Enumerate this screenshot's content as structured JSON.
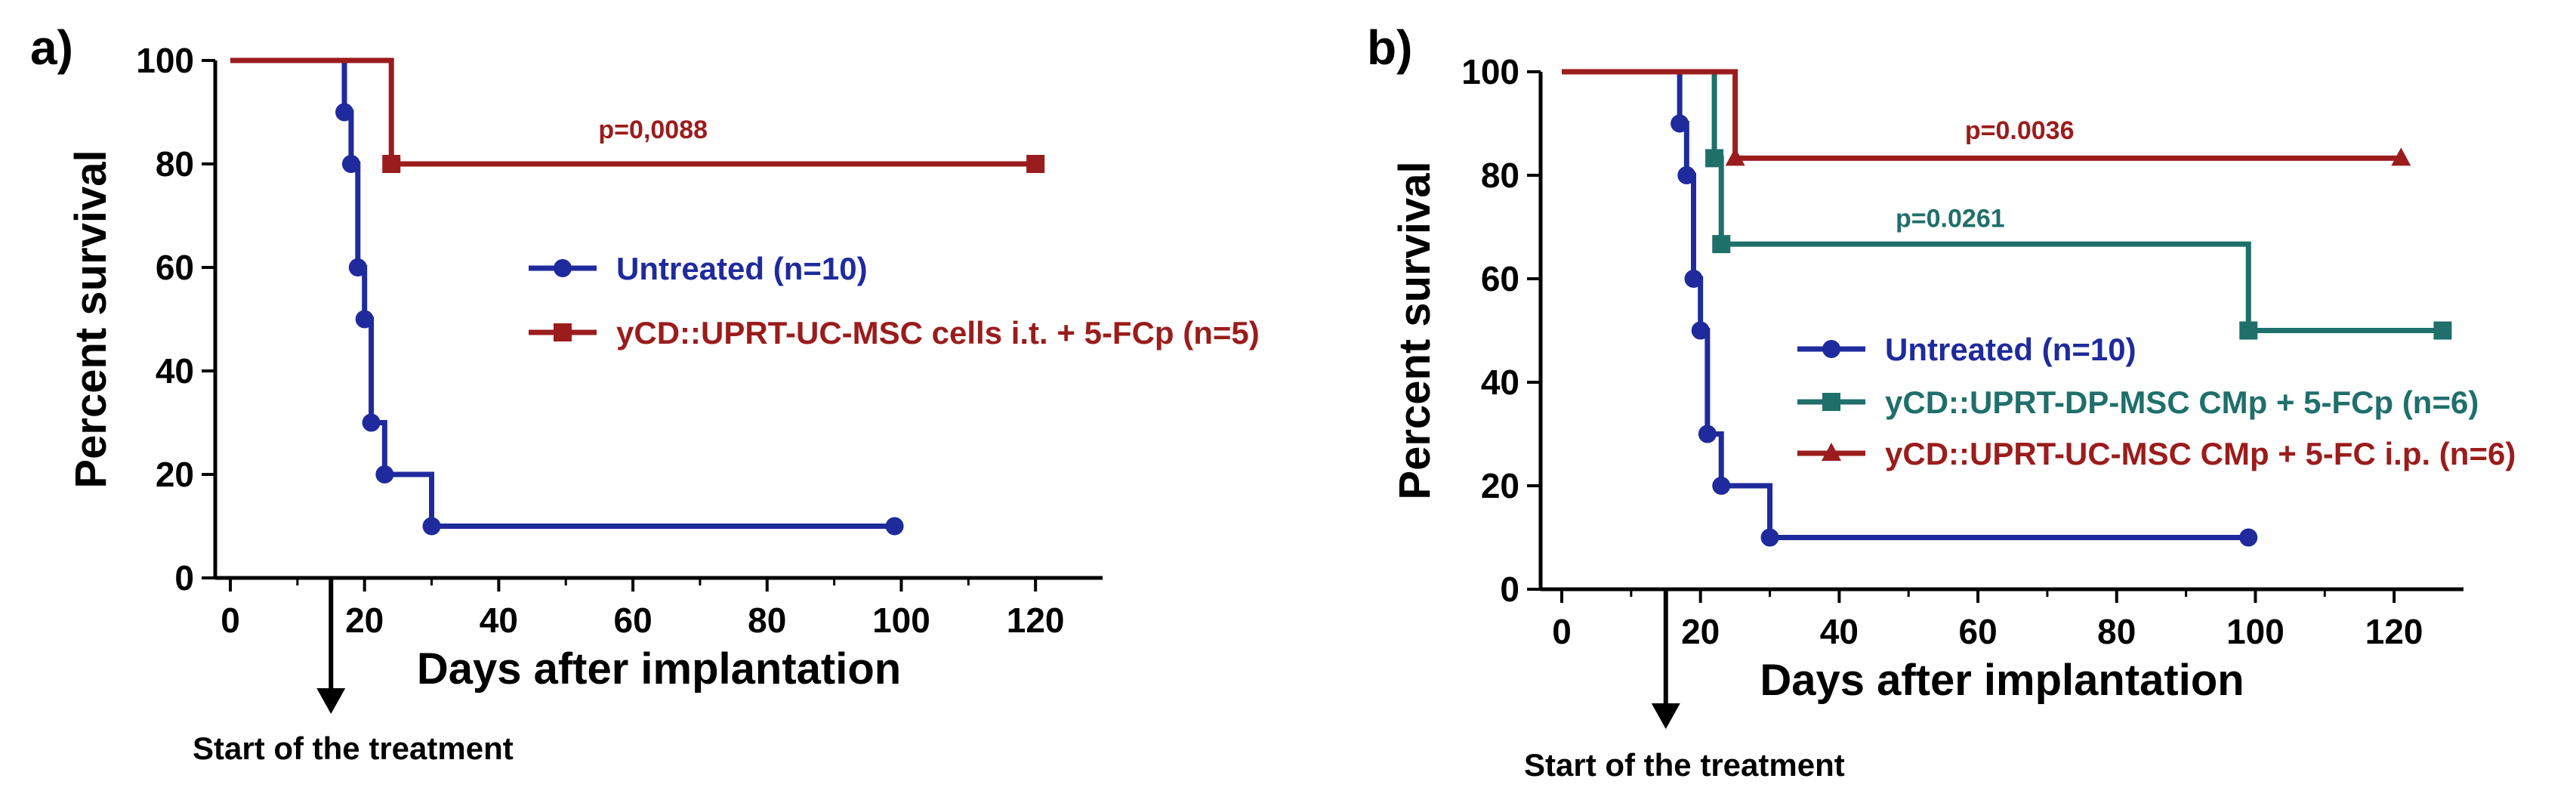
{
  "chart_data": [
    {
      "type": "line",
      "subtype": "kaplan-meier survival",
      "panel_label": "a)",
      "title": "",
      "xlabel": "Days after implantation",
      "ylabel": "Percent survival",
      "xlim": [
        0,
        130
      ],
      "ylim": [
        0,
        100
      ],
      "x_ticks": [
        "0",
        "20",
        "40",
        "60",
        "80",
        "100",
        "120"
      ],
      "y_ticks": [
        "0",
        "20",
        "40",
        "60",
        "80",
        "100"
      ],
      "annotation": "Start of the treatment",
      "annotation_x": 15,
      "pvalues": [
        {
          "text": "p=0,0088",
          "series": 1,
          "x": 63,
          "y": 85,
          "color": "#9b1c1c"
        }
      ],
      "series": [
        {
          "name": "Untreated (n=10)",
          "color": "#1f2a9c",
          "marker": "circle",
          "steps": [
            [
              0,
              100
            ],
            [
              17,
              90
            ],
            [
              18,
              80
            ],
            [
              19,
              60
            ],
            [
              20,
              50
            ],
            [
              21,
              30
            ],
            [
              23,
              20
            ],
            [
              30,
              10
            ],
            [
              99,
              10
            ]
          ],
          "markers": [
            [
              17,
              90
            ],
            [
              18,
              80
            ],
            [
              19,
              60
            ],
            [
              20,
              50
            ],
            [
              21,
              30
            ],
            [
              23,
              20
            ],
            [
              30,
              10
            ],
            [
              99,
              10
            ]
          ]
        },
        {
          "name": "yCD::UPRT-UC-MSC cells i.t. + 5-FCp (n=5)",
          "color": "#9b1c1c",
          "marker": "square",
          "steps": [
            [
              0,
              100
            ],
            [
              24,
              80
            ],
            [
              120,
              80
            ]
          ],
          "markers": [
            [
              24,
              80
            ],
            [
              120,
              80
            ]
          ]
        }
      ]
    },
    {
      "type": "line",
      "subtype": "kaplan-meier survival",
      "panel_label": "b)",
      "title": "",
      "xlabel": "Days after implantation",
      "ylabel": "Percent survival",
      "xlim": [
        0,
        130
      ],
      "ylim": [
        0,
        100
      ],
      "x_ticks": [
        "0",
        "20",
        "40",
        "60",
        "80",
        "100",
        "120"
      ],
      "y_ticks": [
        "0",
        "20",
        "40",
        "60",
        "80",
        "100"
      ],
      "annotation": "Start of the treatment",
      "annotation_x": 15,
      "pvalues": [
        {
          "text": "p=0.0036",
          "series": 2,
          "x": 66,
          "y": 87,
          "color": "#9b1c1c"
        },
        {
          "text": "p=0.0261",
          "series": 1,
          "x": 56,
          "y": 70,
          "color": "#1f6f6b"
        }
      ],
      "series": [
        {
          "name": "Untreated (n=10)",
          "color": "#1f2a9c",
          "marker": "circle",
          "steps": [
            [
              0,
              100
            ],
            [
              17,
              90
            ],
            [
              18,
              80
            ],
            [
              19,
              60
            ],
            [
              20,
              50
            ],
            [
              21,
              30
            ],
            [
              23,
              20
            ],
            [
              30,
              10
            ],
            [
              99,
              10
            ]
          ],
          "markers": [
            [
              17,
              90
            ],
            [
              18,
              80
            ],
            [
              19,
              60
            ],
            [
              20,
              50
            ],
            [
              21,
              30
            ],
            [
              23,
              20
            ],
            [
              30,
              10
            ],
            [
              99,
              10
            ]
          ]
        },
        {
          "name": "yCD::UPRT-DP-MSC CMp + 5-FCp (n=6)",
          "color": "#1f6f6b",
          "marker": "square",
          "steps": [
            [
              0,
              100
            ],
            [
              22,
              83.3
            ],
            [
              23,
              66.7
            ],
            [
              99,
              50
            ],
            [
              127,
              50
            ]
          ],
          "markers": [
            [
              22,
              83.3
            ],
            [
              23,
              66.7
            ],
            [
              99,
              50
            ],
            [
              127,
              50
            ]
          ]
        },
        {
          "name": "yCD::UPRT-UC-MSC CMp + 5-FC i.p. (n=6)",
          "color": "#9b1c1c",
          "marker": "triangle",
          "steps": [
            [
              0,
              100
            ],
            [
              25,
              83.3
            ],
            [
              121,
              83.3
            ]
          ],
          "markers": [
            [
              25,
              83.3
            ],
            [
              121,
              83.3
            ]
          ]
        }
      ]
    }
  ]
}
